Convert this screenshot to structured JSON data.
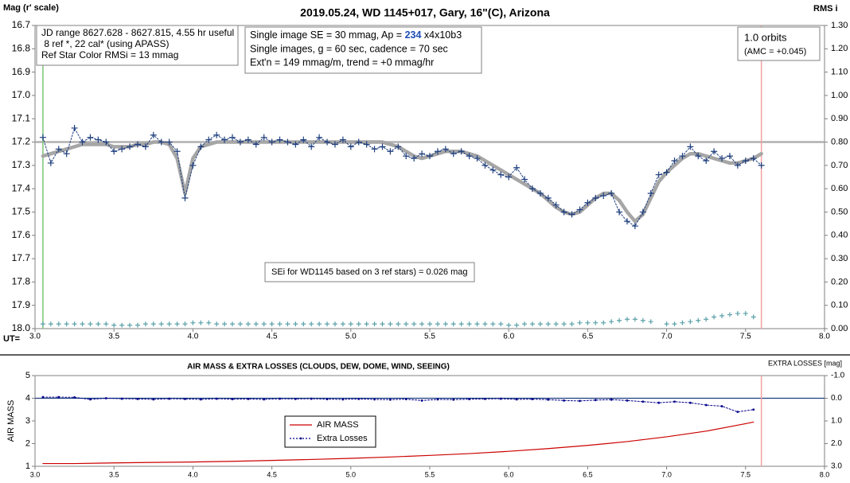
{
  "chart_data": [
    {
      "type": "line",
      "title": "2019.05.24, WD 1145+017, Gary, 16\"(C), Arizona",
      "y_label": "Mag (r' scale)",
      "y2_label": "RMS i",
      "x_label": "UT=",
      "xlim": [
        3,
        8
      ],
      "xticks": [
        {
          "value": 3,
          "label": "3.0"
        },
        3.5,
        {
          "value": 4,
          "label": "4.0"
        },
        4.5,
        {
          "value": 5,
          "label": "5.0"
        },
        5.5,
        {
          "value": 6,
          "label": "6.0"
        },
        6.5,
        {
          "value": 7,
          "label": "7.0"
        },
        7.5,
        {
          "value": 8,
          "label": "8.0"
        }
      ],
      "ylim": [
        18,
        16.7
      ],
      "yticks": [
        16.7,
        16.8,
        16.9,
        {
          "value": 17,
          "label": "17.0"
        },
        17.1,
        17.2,
        17.3,
        17.4,
        17.5,
        17.6,
        17.7,
        17.8,
        17.9,
        {
          "value": 18,
          "label": "18.0"
        }
      ],
      "y2lim": [
        0,
        1.3
      ],
      "y2ticks": [
        {
          "value": 0,
          "label": "0.00"
        },
        {
          "value": 0.1,
          "label": "0.10"
        },
        {
          "value": 0.2,
          "label": "0.20"
        },
        {
          "value": 0.3,
          "label": "0.30"
        },
        {
          "value": 0.4,
          "label": "0.40"
        },
        {
          "value": 0.5,
          "label": "0.50"
        },
        {
          "value": 0.6,
          "label": "0.60"
        },
        {
          "value": 0.7,
          "label": "0.70"
        },
        {
          "value": 0.8,
          "label": "0.80"
        },
        {
          "value": 0.9,
          "label": "0.90"
        },
        {
          "value": 1,
          "label": "1.00"
        },
        {
          "value": 1.1,
          "label": "1.10"
        },
        {
          "value": 1.2,
          "label": "1.20"
        },
        {
          "value": 1.3,
          "label": "1.30"
        }
      ],
      "grid": false,
      "reference_lines": [
        {
          "value": 17.2,
          "color": "#b0b0b0"
        }
      ],
      "vlines": [
        {
          "value": 3.05,
          "color": "#7cc576"
        },
        {
          "value": 7.6,
          "color": "#f4a0a0"
        }
      ],
      "x": [
        3.05,
        3.1,
        3.15,
        3.2,
        3.25,
        3.3,
        3.35,
        3.4,
        3.45,
        3.5,
        3.55,
        3.6,
        3.65,
        3.7,
        3.75,
        3.8,
        3.85,
        3.9,
        3.95,
        4,
        4.05,
        4.1,
        4.15,
        4.2,
        4.25,
        4.3,
        4.35,
        4.4,
        4.45,
        4.5,
        4.55,
        4.6,
        4.65,
        4.7,
        4.75,
        4.8,
        4.85,
        4.9,
        4.95,
        5,
        5.05,
        5.1,
        5.15,
        5.2,
        5.25,
        5.3,
        5.35,
        5.4,
        5.45,
        5.5,
        5.55,
        5.6,
        5.65,
        5.7,
        5.75,
        5.8,
        5.85,
        5.9,
        5.95,
        6,
        6.05,
        6.1,
        6.15,
        6.2,
        6.25,
        6.3,
        6.35,
        6.4,
        6.45,
        6.5,
        6.55,
        6.6,
        6.65,
        6.7,
        6.75,
        6.8,
        6.85,
        6.9,
        6.95,
        7,
        7.05,
        7.1,
        7.15,
        7.2,
        7.25,
        7.3,
        7.35,
        7.4,
        7.45,
        7.5,
        7.55,
        7.6
      ],
      "series": [
        {
          "color": "#a6a6a6",
          "line": "thick",
          "marker": "none",
          "values": [
            17.26,
            17.25,
            17.24,
            17.23,
            17.22,
            17.21,
            17.21,
            17.21,
            17.21,
            17.22,
            17.22,
            17.22,
            17.21,
            17.21,
            17.2,
            17.2,
            17.21,
            17.27,
            17.42,
            17.27,
            17.22,
            17.21,
            17.2,
            17.2,
            17.2,
            17.2,
            17.2,
            17.2,
            17.2,
            17.2,
            17.2,
            17.2,
            17.2,
            17.2,
            17.2,
            17.2,
            17.2,
            17.2,
            17.2,
            17.2,
            17.2,
            17.2,
            17.2,
            17.2,
            17.21,
            17.22,
            17.24,
            17.26,
            17.27,
            17.26,
            17.25,
            17.24,
            17.24,
            17.24,
            17.25,
            17.26,
            17.28,
            17.3,
            17.32,
            17.34,
            17.36,
            17.38,
            17.4,
            17.42,
            17.45,
            17.48,
            17.5,
            17.51,
            17.5,
            17.47,
            17.44,
            17.42,
            17.42,
            17.45,
            17.5,
            17.54,
            17.51,
            17.44,
            17.37,
            17.33,
            17.3,
            17.27,
            17.25,
            17.25,
            17.26,
            17.27,
            17.28,
            17.29,
            17.29,
            17.28,
            17.27,
            17.25
          ]
        },
        {
          "color": "#1f3f7f",
          "line": "dotted",
          "marker": "cross",
          "values": [
            17.18,
            17.29,
            17.23,
            17.25,
            17.14,
            17.2,
            17.18,
            17.19,
            17.2,
            17.24,
            17.23,
            17.22,
            17.21,
            17.22,
            17.17,
            17.2,
            17.2,
            17.24,
            17.44,
            17.3,
            17.22,
            17.19,
            17.17,
            17.19,
            17.18,
            17.2,
            17.19,
            17.21,
            17.18,
            17.2,
            17.19,
            17.2,
            17.21,
            17.19,
            17.22,
            17.18,
            17.2,
            17.21,
            17.19,
            17.22,
            17.2,
            17.21,
            17.23,
            17.22,
            17.24,
            17.22,
            17.26,
            17.27,
            17.25,
            17.26,
            17.24,
            17.23,
            17.25,
            17.24,
            17.26,
            17.27,
            17.3,
            17.32,
            17.34,
            17.35,
            17.31,
            17.36,
            17.4,
            17.42,
            17.44,
            17.47,
            17.5,
            17.51,
            17.49,
            17.46,
            17.44,
            17.43,
            17.42,
            17.5,
            17.54,
            17.56,
            17.5,
            17.42,
            17.34,
            17.33,
            17.28,
            17.26,
            17.22,
            17.26,
            17.28,
            17.24,
            17.27,
            17.26,
            17.3,
            17.28,
            17.27,
            17.3
          ]
        },
        {
          "color": "#5aa0a8",
          "line": "none",
          "marker": "cross",
          "axis": "y2",
          "values": [
            0.02,
            0.02,
            0.02,
            0.02,
            0.02,
            0.02,
            0.02,
            0.02,
            0.02,
            0.015,
            0.015,
            0.015,
            0.015,
            0.02,
            0.02,
            0.02,
            0.02,
            0.02,
            0.02,
            0.025,
            0.025,
            0.025,
            0.02,
            0.02,
            0.02,
            0.02,
            0.02,
            0.02,
            0.02,
            0.02,
            0.02,
            0.02,
            0.02,
            0.02,
            0.02,
            0.02,
            0.02,
            0.02,
            0.02,
            0.02,
            0.02,
            0.02,
            0.02,
            0.02,
            0.02,
            0.02,
            0.02,
            0.02,
            0.02,
            0.02,
            0.02,
            0.02,
            0.02,
            0.02,
            0.02,
            0.02,
            0.02,
            0.02,
            0.02,
            0.015,
            0.015,
            0.02,
            0.02,
            0.02,
            0.02,
            0.02,
            0.02,
            0.02,
            0.025,
            0.025,
            0.025,
            0.025,
            0.03,
            0.035,
            0.04,
            0.04,
            0.035,
            0.03,
            null,
            0.02,
            0.02,
            0.025,
            0.03,
            0.035,
            0.04,
            0.05,
            0.055,
            0.06,
            0.065,
            0.065,
            0.05,
            null
          ]
        }
      ],
      "annotations": [
        {
          "lines": [
            "JD range 8627.628 - 8627.815, 4.55 hr useful",
            " 8 ref *, 22 cal* (using APASS)",
            "Ref Star Color RMSi = 13 mmag"
          ]
        },
        {
          "lines": [
            [
              "Single image SE = 30 mmag, Ap = ",
              "234",
              " x4x10b3"
            ],
            "Single images, g = 60 sec, cadence = 70 sec",
            "Ext'n = 149 mmag/m, trend = +0 mmag/hr"
          ]
        },
        {
          "lines": [
            "1.0 orbits",
            "(AMC = +0.045)"
          ]
        },
        {
          "lines": [
            "SEi for WD1145 based on 3 ref stars) = 0.026 mag"
          ]
        }
      ]
    },
    {
      "type": "line",
      "title": "AIR MASS & EXTRA LOSSES (CLOUDS, DEW, DOME, WIND, SEEING)",
      "y_label": "AIR MASS",
      "y2_label": "EXTRA LOSSES [mag]",
      "xlim": [
        3,
        8
      ],
      "xticks": [
        {
          "value": 3,
          "label": "3.0"
        },
        3.5,
        {
          "value": 4,
          "label": "4.0"
        },
        4.5,
        {
          "value": 5,
          "label": "5.0"
        },
        5.5,
        {
          "value": 6,
          "label": "6.0"
        },
        6.5,
        {
          "value": 7,
          "label": "7.0"
        },
        7.5,
        {
          "value": 8,
          "label": "8.0"
        }
      ],
      "ylim": [
        1,
        5
      ],
      "yticks": [
        1,
        2,
        3,
        4,
        5
      ],
      "y2lim": [
        3,
        -1
      ],
      "y2ticks": [
        {
          "value": 3,
          "label": "3.0"
        },
        {
          "value": 2,
          "label": "2.0"
        },
        {
          "value": 1,
          "label": "1.0"
        },
        {
          "value": 0,
          "label": "0.0"
        },
        {
          "value": -1,
          "label": "-1.0"
        }
      ],
      "grid": false,
      "legend": "lower center",
      "reference_lines": [
        {
          "value": 0,
          "axis": "y2",
          "color": "#1f3f7f"
        }
      ],
      "vlines": [
        {
          "value": 7.6,
          "color": "#f4a0a0"
        }
      ],
      "series": [
        {
          "name": "AIR MASS",
          "color": "#cc0000",
          "line": "solid",
          "marker": "none",
          "x": [
            3.05,
            3.25,
            3.5,
            3.75,
            4,
            4.25,
            4.5,
            4.75,
            5,
            5.25,
            5.5,
            5.75,
            6,
            6.25,
            6.5,
            6.75,
            7,
            7.25,
            7.5,
            7.55
          ],
          "values": [
            1.12,
            1.12,
            1.15,
            1.17,
            1.19,
            1.22,
            1.26,
            1.3,
            1.35,
            1.41,
            1.48,
            1.56,
            1.66,
            1.78,
            1.92,
            2.09,
            2.3,
            2.55,
            2.88,
            2.95
          ]
        },
        {
          "name": "Extra Losses",
          "color": "#00008b",
          "line": "dotted",
          "marker": "dot",
          "axis": "y2",
          "x": [
            3.05,
            3.15,
            3.25,
            3.35,
            3.45,
            3.55,
            3.65,
            3.75,
            3.85,
            3.95,
            4.05,
            4.15,
            4.25,
            4.35,
            4.45,
            4.55,
            4.65,
            4.75,
            4.85,
            4.95,
            5.05,
            5.15,
            5.25,
            5.35,
            5.45,
            5.55,
            5.65,
            5.75,
            5.85,
            5.95,
            6.05,
            6.15,
            6.25,
            6.35,
            6.45,
            6.55,
            6.65,
            6.75,
            6.85,
            6.95,
            7.05,
            7.15,
            7.25,
            7.35,
            7.45,
            7.55
          ],
          "values": [
            -0.05,
            -0.05,
            -0.04,
            0.05,
            0,
            0.02,
            0.03,
            0.05,
            0.02,
            0.03,
            0.05,
            0.02,
            0.04,
            0.03,
            0.05,
            0.02,
            0.03,
            0.02,
            0.04,
            0.05,
            0.03,
            0.05,
            0.06,
            0.04,
            0.1,
            0.05,
            0.06,
            0.04,
            0.03,
            0.02,
            0.05,
            0.04,
            0.06,
            0.1,
            0.12,
            0.08,
            0.06,
            0.1,
            0.15,
            0.2,
            0.15,
            0.2,
            0.3,
            0.35,
            0.6,
            0.5
          ]
        }
      ]
    }
  ]
}
